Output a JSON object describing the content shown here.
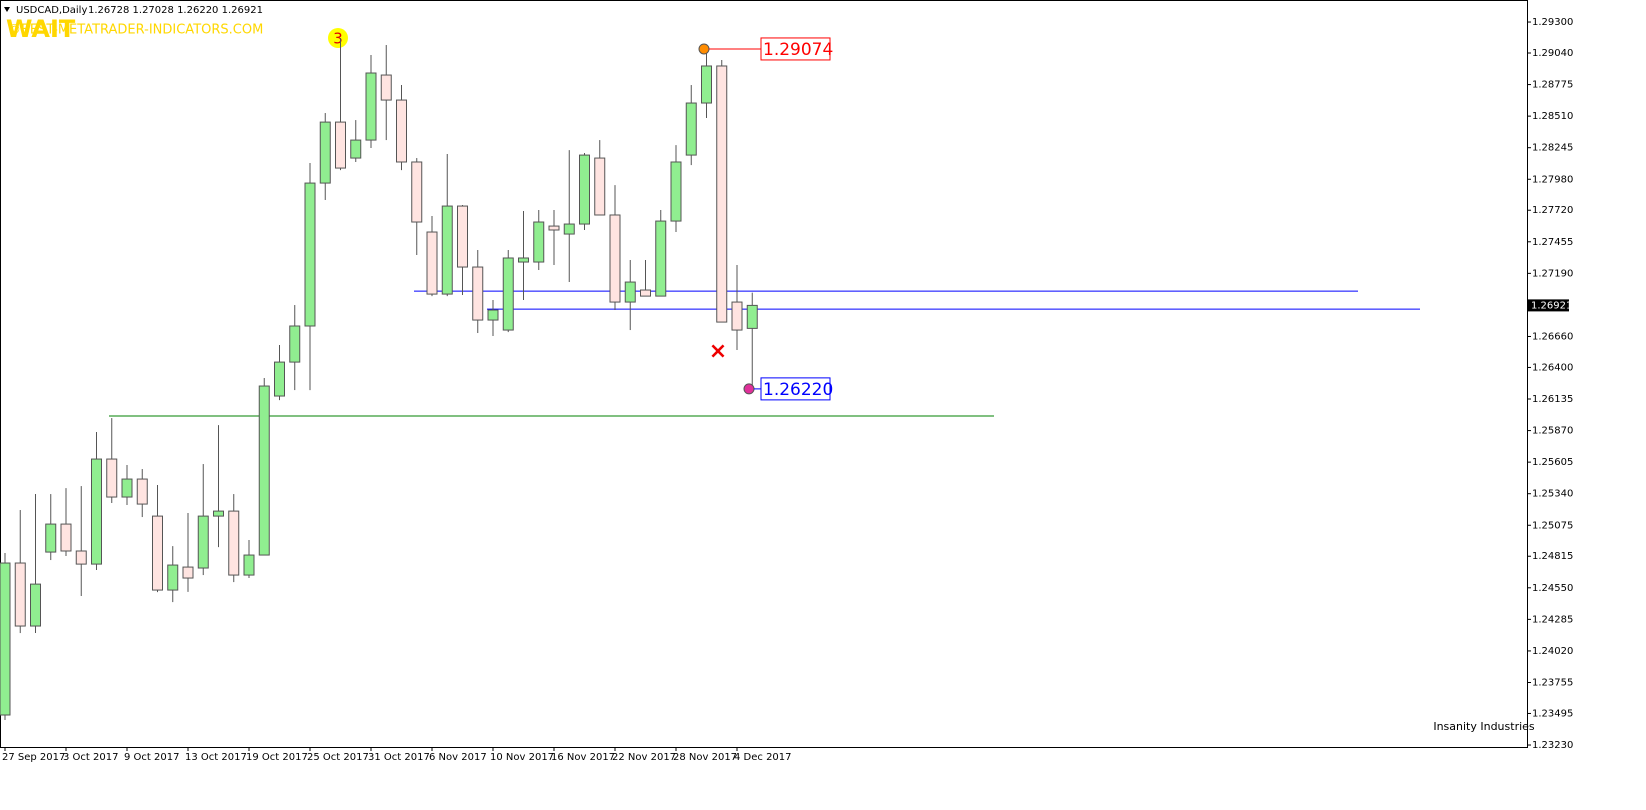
{
  "chart_data": {
    "type": "candlestick",
    "title": "USDCAD,Daily",
    "subtitle": "1.26728 1.27028 1.26220 1.26921",
    "watermark": "WAIT",
    "watermark_site": "©BEST-METATRADER-INDICATORS.COM",
    "brand": "Insanity Industries",
    "wave_label": "3",
    "categories": [
      "27 Sep 2017",
      null,
      null,
      null,
      "3 Oct 2017",
      null,
      null,
      null,
      "9 Oct 2017",
      null,
      null,
      null,
      "13 Oct 2017",
      null,
      null,
      null,
      "19 Oct 2017",
      null,
      null,
      null,
      "25 Oct 2017",
      null,
      null,
      null,
      "31 Oct 2017",
      null,
      null,
      null,
      "6 Nov 2017",
      null,
      null,
      null,
      "10 Nov 2017",
      null,
      null,
      null,
      "16 Nov 2017",
      null,
      null,
      null,
      "22 Nov 2017",
      null,
      null,
      null,
      "28 Nov 2017",
      null,
      null,
      null,
      "4 Dec 2017",
      null
    ],
    "open": [
      1.23482,
      1.24758,
      1.24229,
      1.2485,
      1.25085,
      1.24859,
      1.24749,
      1.25631,
      1.25312,
      1.25463,
      1.25152,
      1.24531,
      1.24724,
      1.24716,
      1.25152,
      1.25194,
      1.24657,
      1.24825,
      1.2616,
      1.26445,
      1.26748,
      1.27948,
      1.2846,
      1.28158,
      1.28309,
      1.28855,
      1.28645,
      1.28125,
      1.27537,
      1.27016,
      1.27755,
      1.27243,
      1.26798,
      1.26714,
      1.27285,
      1.27285,
      1.27587,
      1.2752,
      1.27604,
      1.28158,
      1.2768,
      1.26949,
      1.2705,
      1.26999,
      1.27629,
      1.28183,
      1.2862,
      1.28931,
      1.26949,
      1.26728
    ],
    "high": [
      1.24842,
      1.25203,
      1.25337,
      1.25337,
      1.25387,
      1.25404,
      1.25858,
      1.25975,
      1.25581,
      1.25547,
      1.25413,
      1.249,
      1.25178,
      1.25589,
      1.25916,
      1.25337,
      1.24951,
      1.26311,
      1.26588,
      1.26924,
      1.28116,
      1.28536,
      1.29166,
      1.28477,
      1.29023,
      1.29107,
      1.28771,
      1.28158,
      1.27671,
      1.28192,
      1.27764,
      1.27386,
      1.26966,
      1.27386,
      1.27713,
      1.27722,
      1.27722,
      1.28225,
      1.282,
      1.28309,
      1.27931,
      1.27302,
      1.27302,
      1.27722,
      1.28267,
      1.28771,
      1.29074,
      1.28981,
      1.2726,
      1.27028
    ],
    "low": [
      1.2344,
      1.2417,
      1.2417,
      1.24783,
      1.24817,
      1.24481,
      1.24699,
      1.25262,
      1.25245,
      1.25144,
      1.24514,
      1.2443,
      1.24516,
      1.24657,
      1.24892,
      1.24598,
      1.24632,
      1.24825,
      1.26126,
      1.2621,
      1.2621,
      1.27806,
      1.28057,
      1.28125,
      1.28242,
      1.28309,
      1.28057,
      1.27344,
      1.26999,
      1.26999,
      1.27008,
      1.26689,
      1.26664,
      1.26697,
      1.26966,
      1.27218,
      1.2726,
      1.27117,
      1.27554,
      1.2768,
      1.26882,
      1.26714,
      1.26999,
      1.26999,
      1.27537,
      1.28099,
      1.28494,
      1.26781,
      1.26546,
      1.2622
    ],
    "close": [
      1.24758,
      1.24229,
      1.24581,
      1.25085,
      1.24859,
      1.24749,
      1.25631,
      1.25312,
      1.25463,
      1.25253,
      1.24531,
      1.24741,
      1.24632,
      1.25152,
      1.25194,
      1.24657,
      1.24825,
      1.26244,
      1.26445,
      1.26748,
      1.27948,
      1.2846,
      1.28074,
      1.28309,
      1.28872,
      1.28645,
      1.28125,
      1.27621,
      1.27016,
      1.27755,
      1.27243,
      1.26798,
      1.26882,
      1.27319,
      1.27319,
      1.27621,
      1.27554,
      1.27604,
      1.28183,
      1.2768,
      1.26949,
      1.27117,
      1.26999,
      1.27629,
      1.28125,
      1.2862,
      1.28931,
      1.26781,
      1.26714,
      1.26921
    ],
    "bull_color": "#90ee90",
    "bear_color": "#ffe4e1",
    "ylim": [
      1.23205,
      1.29485
    ],
    "yticks": [
      {
        "value": 1.293,
        "label": "1.29300"
      },
      {
        "value": 1.2904,
        "label": "1.29040"
      },
      {
        "value": 1.28775,
        "label": "1.28775"
      },
      {
        "value": 1.2851,
        "label": "1.28510"
      },
      {
        "value": 1.28245,
        "label": "1.28245"
      },
      {
        "value": 1.2798,
        "label": "1.27980"
      },
      {
        "value": 1.2772,
        "label": "1.27720"
      },
      {
        "value": 1.27455,
        "label": "1.27455"
      },
      {
        "value": 1.2719,
        "label": "1.27190"
      },
      {
        "value": 1.2666,
        "label": "1.26660"
      },
      {
        "value": 1.264,
        "label": "1.26400"
      },
      {
        "value": 1.26135,
        "label": "1.26135"
      },
      {
        "value": 1.2587,
        "label": "1.25870"
      },
      {
        "value": 1.25605,
        "label": "1.25605"
      },
      {
        "value": 1.2534,
        "label": "1.25340"
      },
      {
        "value": 1.25075,
        "label": "1.25075"
      },
      {
        "value": 1.24815,
        "label": "1.24815"
      },
      {
        "value": 1.2455,
        "label": "1.24550"
      },
      {
        "value": 1.24285,
        "label": "1.24285"
      },
      {
        "value": 1.2402,
        "label": "1.24020"
      },
      {
        "value": 1.23755,
        "label": "1.23755"
      },
      {
        "value": 1.23495,
        "label": "1.23495"
      },
      {
        "value": 1.2323,
        "label": "1.23230"
      }
    ],
    "last_price": {
      "value": 1.26921,
      "label": "1.26921"
    },
    "annotations": [
      {
        "value": 1.29074,
        "label": "1.29074",
        "color": "#ff0000"
      },
      {
        "value": 1.2622,
        "label": "1.26220",
        "color": "#0000ff"
      }
    ],
    "levels": [
      {
        "value": 1.27041,
        "color": "#0000ff"
      },
      {
        "value": 1.2689,
        "color": "#0000ff"
      },
      {
        "value": 1.25992,
        "color": "#008000"
      }
    ]
  }
}
